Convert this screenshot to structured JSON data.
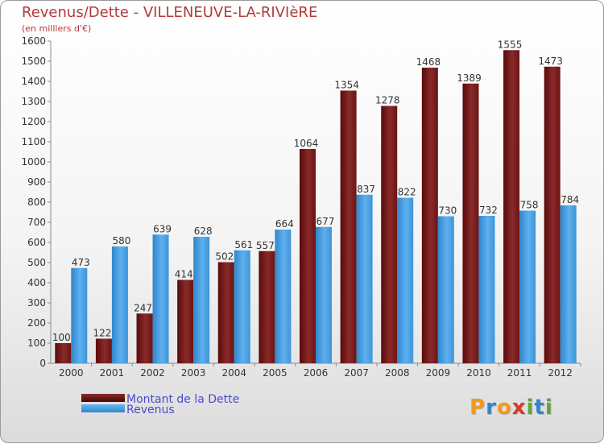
{
  "header": {
    "title": "Revenus/Dette - VILLENEUVE-LA-RIVIèRE",
    "subtitle": "(en milliers d'€)"
  },
  "logo": {
    "p": "P",
    "r": "r",
    "o": "o",
    "x": "x",
    "i1": "i",
    "t": "t",
    "i2": "i"
  },
  "chart_data": {
    "type": "bar",
    "title": "Revenus/Dette - VILLENEUVE-LA-RIVIèRE",
    "ylabel": "(en milliers d'€)",
    "xlabel": "",
    "categories": [
      "2000",
      "2001",
      "2002",
      "2003",
      "2004",
      "2005",
      "2006",
      "2007",
      "2008",
      "2009",
      "2010",
      "2011",
      "2012"
    ],
    "series": [
      {
        "name": "Montant de la Dette",
        "color": "#7a1a1a",
        "values": [
          100,
          122,
          247,
          414,
          502,
          557,
          1064,
          1354,
          1278,
          1468,
          1389,
          1555,
          1473
        ]
      },
      {
        "name": "Revenus",
        "color": "#4aa0e0",
        "values": [
          473,
          580,
          639,
          628,
          561,
          664,
          677,
          837,
          822,
          730,
          732,
          758,
          784
        ]
      }
    ],
    "ylim": [
      0,
      1600
    ],
    "yticks": [
      0,
      100,
      200,
      300,
      400,
      500,
      600,
      700,
      800,
      900,
      1000,
      1100,
      1200,
      1300,
      1400,
      1500,
      1600
    ],
    "grid": false,
    "legend": "bottom-left"
  }
}
